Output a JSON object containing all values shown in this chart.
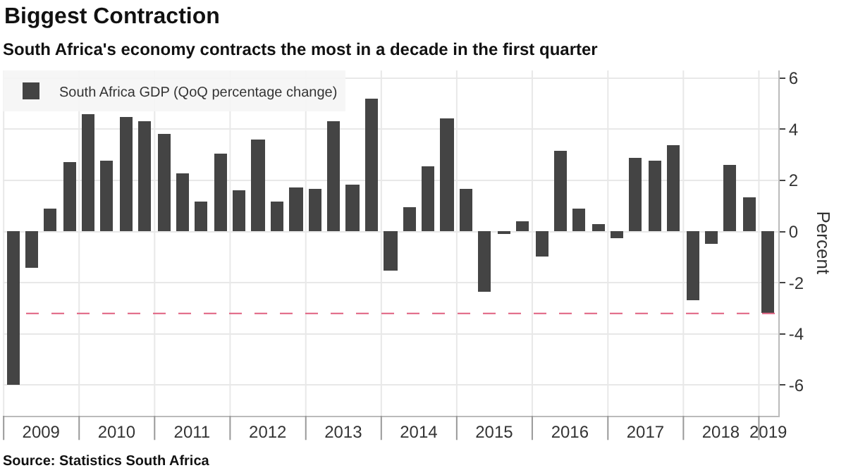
{
  "chart_data": {
    "type": "bar",
    "title": "Biggest Contraction",
    "subtitle": "South Africa's economy contracts the most in a decade in the first quarter",
    "ylabel": "Percent",
    "x": [
      "2009-02-15",
      "2009-05-15",
      "2009-08-15",
      "2009-11-15",
      "2010-02-15",
      "2010-05-15",
      "2010-08-15",
      "2010-11-15",
      "2011-02-15",
      "2011-05-15",
      "2011-08-15",
      "2011-11-15",
      "2012-02-15",
      "2012-05-15",
      "2012-08-15",
      "2012-11-15",
      "2013-02-15",
      "2013-05-15",
      "2013-08-15",
      "2013-11-15",
      "2014-02-15",
      "2014-05-15",
      "2014-08-15",
      "2014-11-15",
      "2015-02-15",
      "2015-05-15",
      "2015-08-15",
      "2015-11-15",
      "2016-02-15",
      "2016-05-15",
      "2016-08-15",
      "2016-11-15",
      "2017-02-15",
      "2017-05-15",
      "2017-08-15",
      "2017-11-15",
      "2018-02-15",
      "2018-05-15",
      "2018-08-15",
      "2018-11-15",
      "2019-02-15"
    ],
    "series": [
      {
        "name": "South Africa GDP (QoQ percentage change)",
        "color": "#444444",
        "values": [
          -6.0,
          -1.4,
          0.9,
          2.7,
          4.6,
          2.75,
          4.5,
          4.3,
          3.8,
          2.3,
          1.2,
          3.05,
          1.6,
          3.6,
          1.2,
          1.7,
          1.65,
          4.3,
          1.85,
          5.2,
          -1.55,
          0.95,
          2.55,
          4.4,
          1.65,
          -2.35,
          -0.05,
          0.4,
          -1.0,
          3.15,
          0.9,
          0.3,
          -0.25,
          2.9,
          2.8,
          3.4,
          -2.7,
          -0.5,
          2.6,
          1.35,
          -3.2
        ]
      }
    ],
    "xlim": [
      "2008-12-28",
      "2019-04-05"
    ],
    "xticks": [
      {
        "value": "2009-07-01",
        "label": "2009"
      },
      {
        "value": "2010-07-01",
        "label": "2010"
      },
      {
        "value": "2011-07-01",
        "label": "2011"
      },
      {
        "value": "2012-07-01",
        "label": "2012"
      },
      {
        "value": "2013-07-01",
        "label": "2013"
      },
      {
        "value": "2014-07-01",
        "label": "2014"
      },
      {
        "value": "2015-07-01",
        "label": "2015"
      },
      {
        "value": "2016-07-01",
        "label": "2016"
      },
      {
        "value": "2017-07-01",
        "label": "2017"
      },
      {
        "value": "2018-07-01",
        "label": "2018"
      },
      {
        "value": "2019-02-15",
        "label": "2019"
      }
    ],
    "ylim": [
      -7.2,
      6.3
    ],
    "yticks": [
      -6,
      -4,
      -2,
      0,
      2,
      4,
      6
    ],
    "ref_lines": [
      {
        "axis": "y",
        "value": -3.2,
        "label": null,
        "color": "#e06080",
        "line_style": "dashed"
      }
    ],
    "grid": true,
    "legend": "top left",
    "annotations": [
      "Source: Statistics South Africa"
    ]
  }
}
